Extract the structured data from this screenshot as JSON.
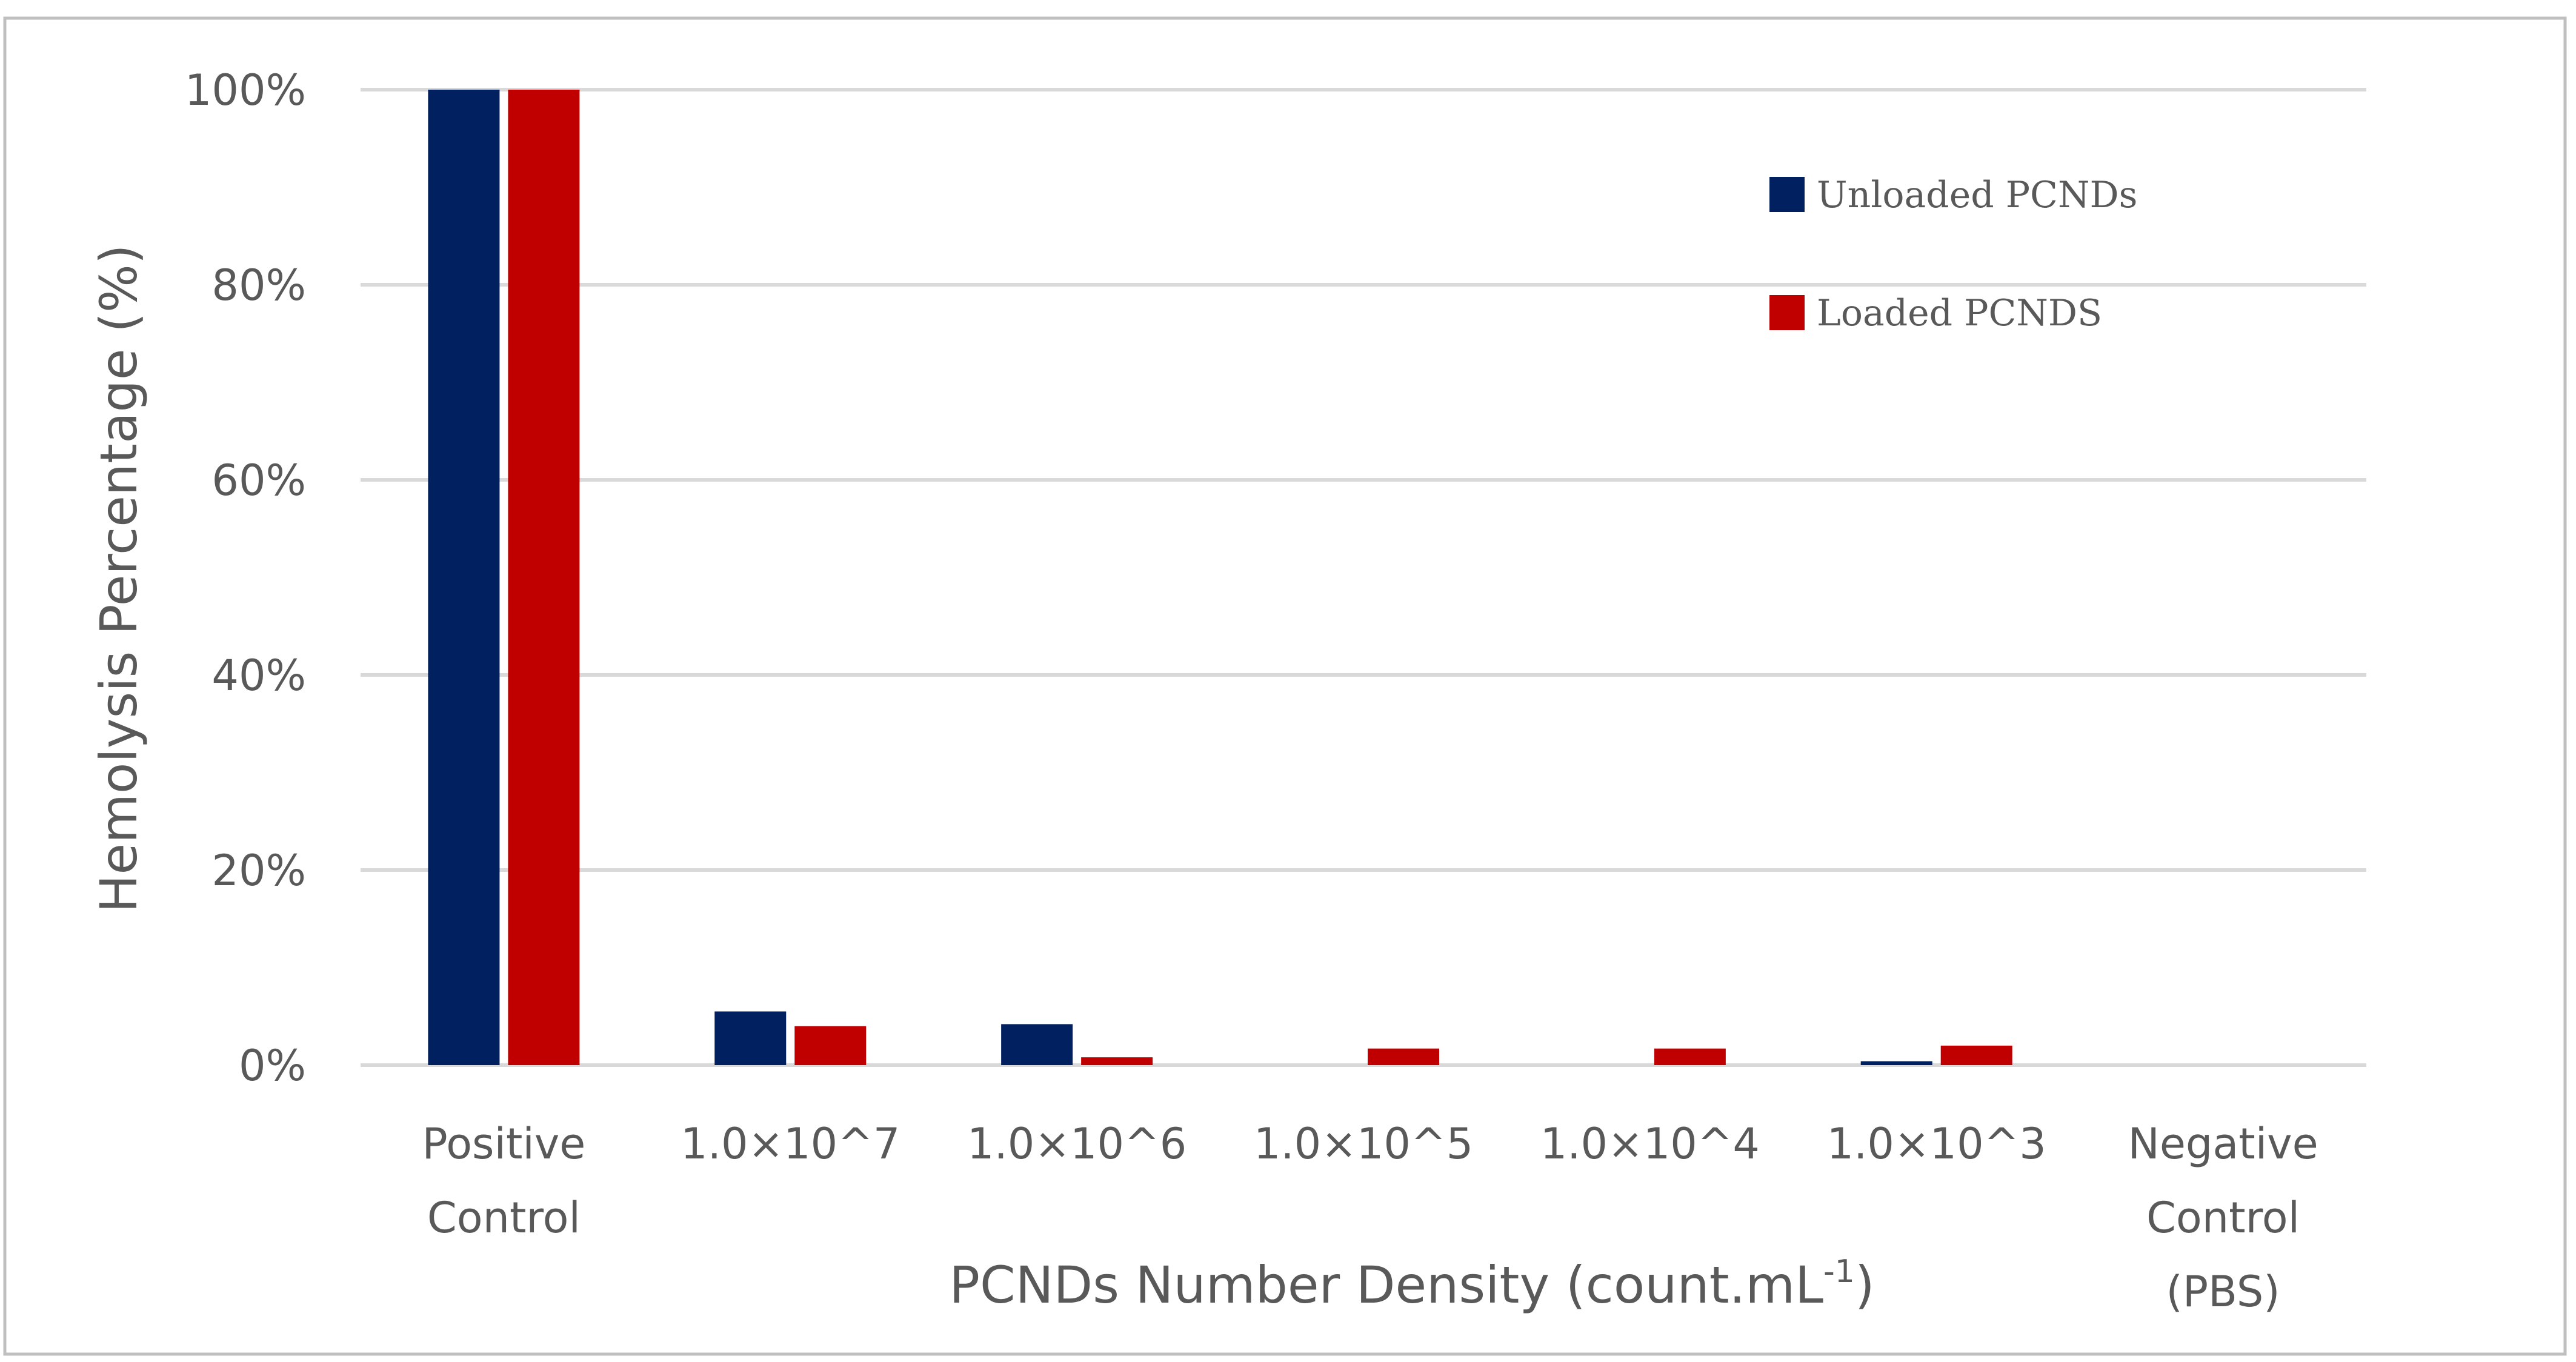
{
  "chart_data": {
    "type": "bar",
    "title": "",
    "xlabel": "PCNDs Number Density (count.mL",
    "xlabel_superscript": "-1",
    "xlabel_suffix": ")",
    "ylabel": "Hemolysis Percentage (%)",
    "ylim": [
      0,
      100
    ],
    "y_ticks": [
      0,
      20,
      40,
      60,
      80,
      100
    ],
    "y_tick_labels": [
      "0%",
      "20%",
      "40%",
      "60%",
      "80%",
      "100%"
    ],
    "grid": true,
    "legend_position": "top-right",
    "categories": [
      [
        "Positive",
        "Control"
      ],
      [
        "1.0×10^7"
      ],
      [
        "1.0×10^6"
      ],
      [
        "1.0×10^5"
      ],
      [
        "1.0×10^4"
      ],
      [
        "1.0×10^3"
      ],
      [
        "Negative",
        "Control",
        "(PBS)"
      ]
    ],
    "series": [
      {
        "name": "Unloaded PCNDs",
        "color": "#002060",
        "values": [
          100,
          5.5,
          4.2,
          0,
          0,
          0.4,
          0
        ]
      },
      {
        "name": "Loaded PCNDS",
        "color": "#C00000",
        "values": [
          100,
          4.0,
          0.8,
          1.7,
          1.7,
          2.0,
          0
        ]
      }
    ]
  },
  "colors": {
    "grid": "#d9d9d9",
    "axis_text": "#595959",
    "frame": "#bfbfbf"
  }
}
